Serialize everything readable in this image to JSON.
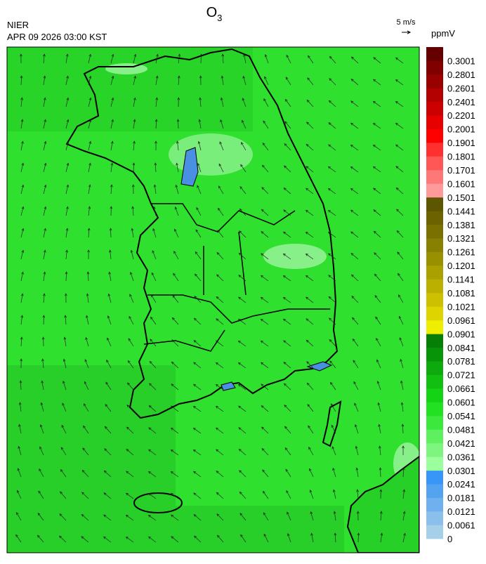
{
  "header": {
    "title": "O",
    "title_subscript": "3",
    "agency": "NIER",
    "timestamp": "APR 09 2026 03:00 KST",
    "wind_scale": "5 m/s"
  },
  "colorbar": {
    "unit": "ppmV",
    "levels": [
      0,
      0.0061,
      0.0121,
      0.0181,
      0.0241,
      0.0301,
      0.0361,
      0.0421,
      0.0481,
      0.0541,
      0.0601,
      0.0661,
      0.0721,
      0.0781,
      0.0841,
      0.0901,
      0.0961,
      0.1021,
      0.1081,
      0.1141,
      0.1201,
      0.1261,
      0.1321,
      0.1381,
      0.1441,
      0.1501,
      0.1601,
      0.1701,
      0.1801,
      0.1901,
      0.2001,
      0.2201,
      0.2401,
      0.2601,
      0.2801,
      0.3001
    ],
    "colors": [
      "#a6cfea",
      "#8cc0ec",
      "#6fb1ee",
      "#54a3f0",
      "#3896f8",
      "#9bff9b",
      "#7ef57e",
      "#5ef05e",
      "#3ce83c",
      "#22e022",
      "#14d214",
      "#10bf10",
      "#0caa0c",
      "#089408",
      "#067f06",
      "#eeee00",
      "#ddd400",
      "#ccc000",
      "#bbb000",
      "#aaa000",
      "#999000",
      "#888000",
      "#7a7000",
      "#6c6200",
      "#5e5500",
      "#ff9a9a",
      "#ff7878",
      "#ff5656",
      "#ff3030",
      "#ff0000",
      "#e60000",
      "#cc0000",
      "#b30000",
      "#990000",
      "#800000",
      "#660000"
    ]
  }
}
